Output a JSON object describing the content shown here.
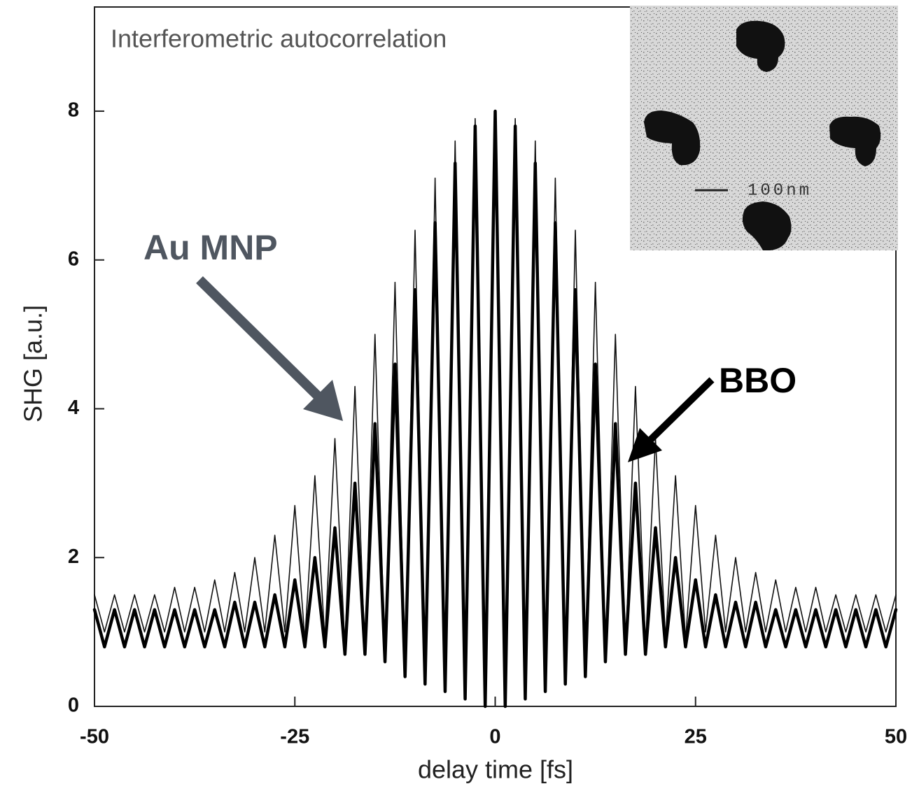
{
  "chart_data": {
    "type": "line",
    "title": "Interferometric autocorrelation",
    "x_label": "delay time [fs]",
    "y_label": "SHG [a.u.]",
    "inset_label": "100nm",
    "x": [
      -50,
      -48.75,
      -47.5,
      -46.25,
      -45,
      -43.75,
      -42.5,
      -41.25,
      -40,
      -38.75,
      -37.5,
      -36.25,
      -35,
      -33.75,
      -32.5,
      -31.25,
      -30,
      -28.75,
      -27.5,
      -26.25,
      -25,
      -23.75,
      -22.5,
      -21.25,
      -20,
      -18.75,
      -17.5,
      -16.25,
      -15,
      -13.75,
      -12.5,
      -11.25,
      -10,
      -8.75,
      -7.5,
      -6.25,
      -5,
      -3.75,
      -2.5,
      -1.25,
      0,
      1.25,
      2.5,
      3.75,
      5,
      6.25,
      7.5,
      8.75,
      10,
      11.25,
      12.5,
      13.75,
      15,
      16.25,
      17.5,
      18.75,
      20,
      21.25,
      22.5,
      23.75,
      25,
      26.25,
      27.5,
      28.75,
      30,
      31.25,
      32.5,
      33.75,
      35,
      36.25,
      37.5,
      38.75,
      40,
      41.25,
      42.5,
      43.75,
      45,
      46.25,
      47.5,
      48.75,
      50
    ],
    "series": [
      {
        "name": "Au MNP",
        "color": "#111111",
        "width": 1.6,
        "values": [
          1.5,
          1.0,
          1.5,
          1.0,
          1.5,
          1.0,
          1.5,
          1.0,
          1.6,
          1.0,
          1.6,
          1.0,
          1.7,
          1.0,
          1.8,
          1.0,
          2.0,
          1.0,
          2.3,
          1.0,
          2.7,
          0.9,
          3.1,
          0.9,
          3.6,
          0.8,
          4.3,
          0.7,
          5.0,
          0.6,
          5.7,
          0.5,
          6.4,
          0.3,
          7.1,
          0.2,
          7.6,
          0.1,
          7.9,
          0,
          8.0,
          0,
          7.9,
          0.1,
          7.6,
          0.2,
          7.1,
          0.3,
          6.4,
          0.5,
          5.7,
          0.6,
          5.0,
          0.7,
          4.3,
          0.8,
          3.6,
          0.9,
          3.1,
          0.9,
          2.7,
          1.0,
          2.3,
          1.0,
          2.0,
          1.0,
          1.8,
          1.0,
          1.7,
          1.0,
          1.6,
          1.0,
          1.6,
          1.0,
          1.5,
          1.0,
          1.5,
          1.0,
          1.5,
          1.0,
          1.5
        ]
      },
      {
        "name": "BBO",
        "color": "#000000",
        "width": 4.5,
        "values": [
          1.3,
          0.8,
          1.3,
          0.8,
          1.3,
          0.8,
          1.3,
          0.8,
          1.3,
          0.8,
          1.3,
          0.8,
          1.3,
          0.8,
          1.4,
          0.8,
          1.4,
          0.8,
          1.5,
          0.8,
          1.7,
          0.8,
          2.0,
          0.8,
          2.4,
          0.7,
          3.0,
          0.7,
          3.8,
          0.6,
          4.6,
          0.4,
          5.6,
          0.3,
          6.5,
          0.2,
          7.3,
          0.1,
          7.8,
          0,
          8.0,
          0,
          7.8,
          0.1,
          7.3,
          0.2,
          6.5,
          0.3,
          5.6,
          0.4,
          4.6,
          0.6,
          3.8,
          0.7,
          3.0,
          0.7,
          2.4,
          0.8,
          2.0,
          0.8,
          1.7,
          0.8,
          1.5,
          0.8,
          1.4,
          0.8,
          1.4,
          0.8,
          1.3,
          0.8,
          1.3,
          0.8,
          1.3,
          0.8,
          1.3,
          0.8,
          1.3,
          0.8,
          1.3,
          0.8,
          1.3
        ]
      }
    ],
    "xlim": [
      -50,
      50
    ],
    "xticks": [
      -50,
      -25,
      0,
      25,
      50
    ],
    "ylim": [
      0,
      9.4
    ],
    "yticks": [
      0,
      2,
      4,
      6,
      8
    ],
    "grid": false
  }
}
